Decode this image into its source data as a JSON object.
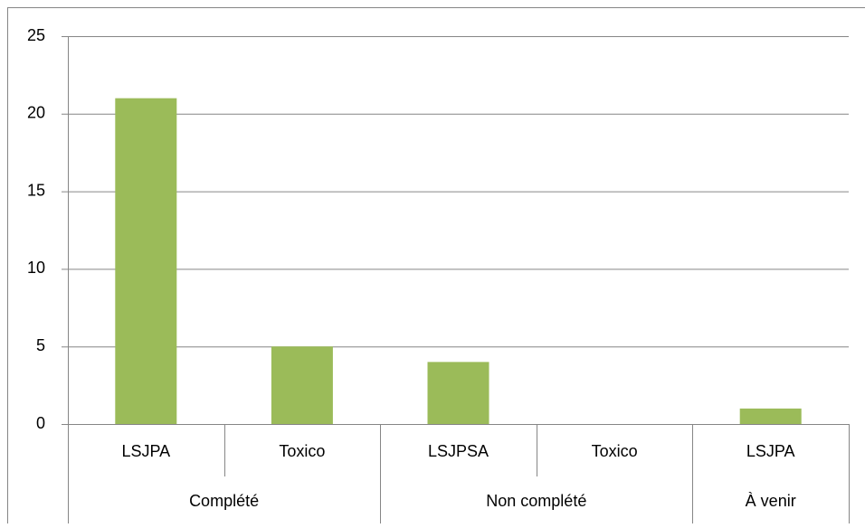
{
  "chart_data": {
    "type": "bar",
    "groups": [
      {
        "label": "Complété",
        "categories": [
          "LSJPA",
          "Toxico"
        ]
      },
      {
        "label": "Non complété",
        "categories": [
          "LSJPSA",
          "Toxico"
        ]
      },
      {
        "label": "À venir",
        "categories": [
          "LSJPA"
        ]
      }
    ],
    "values": [
      21,
      5,
      4,
      0,
      1
    ],
    "color": "#9bbb59",
    "ylim": [
      0,
      25
    ],
    "yticks": [
      0,
      5,
      10,
      15,
      20,
      25
    ],
    "grid": true
  }
}
